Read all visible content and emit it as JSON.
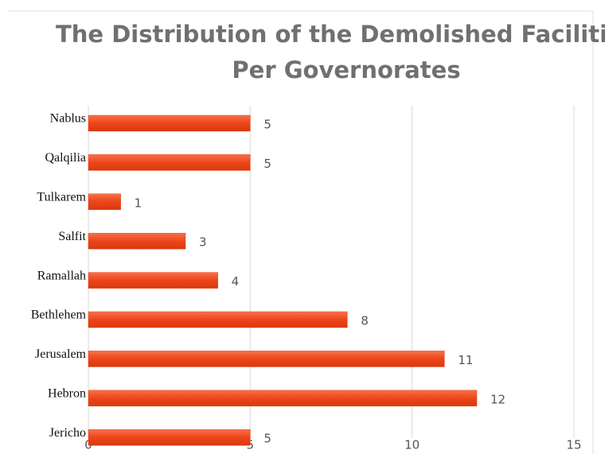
{
  "chart_data": {
    "type": "bar",
    "orientation": "horizontal",
    "title": "The Distribution of the Demolished Facilities Per Governorates",
    "categories": [
      "Nablus",
      "Qalqilia",
      "Tulkarem",
      "Salfit",
      "Ramallah",
      "Bethlehem",
      "Jerusalem",
      "Hebron",
      "Jericho"
    ],
    "values": [
      5,
      5,
      1,
      3,
      4,
      8,
      11,
      12,
      5
    ],
    "color": "#ee4519",
    "xlim": [
      0,
      15
    ],
    "xticks": [
      0,
      5,
      10,
      15
    ],
    "grid": true
  }
}
